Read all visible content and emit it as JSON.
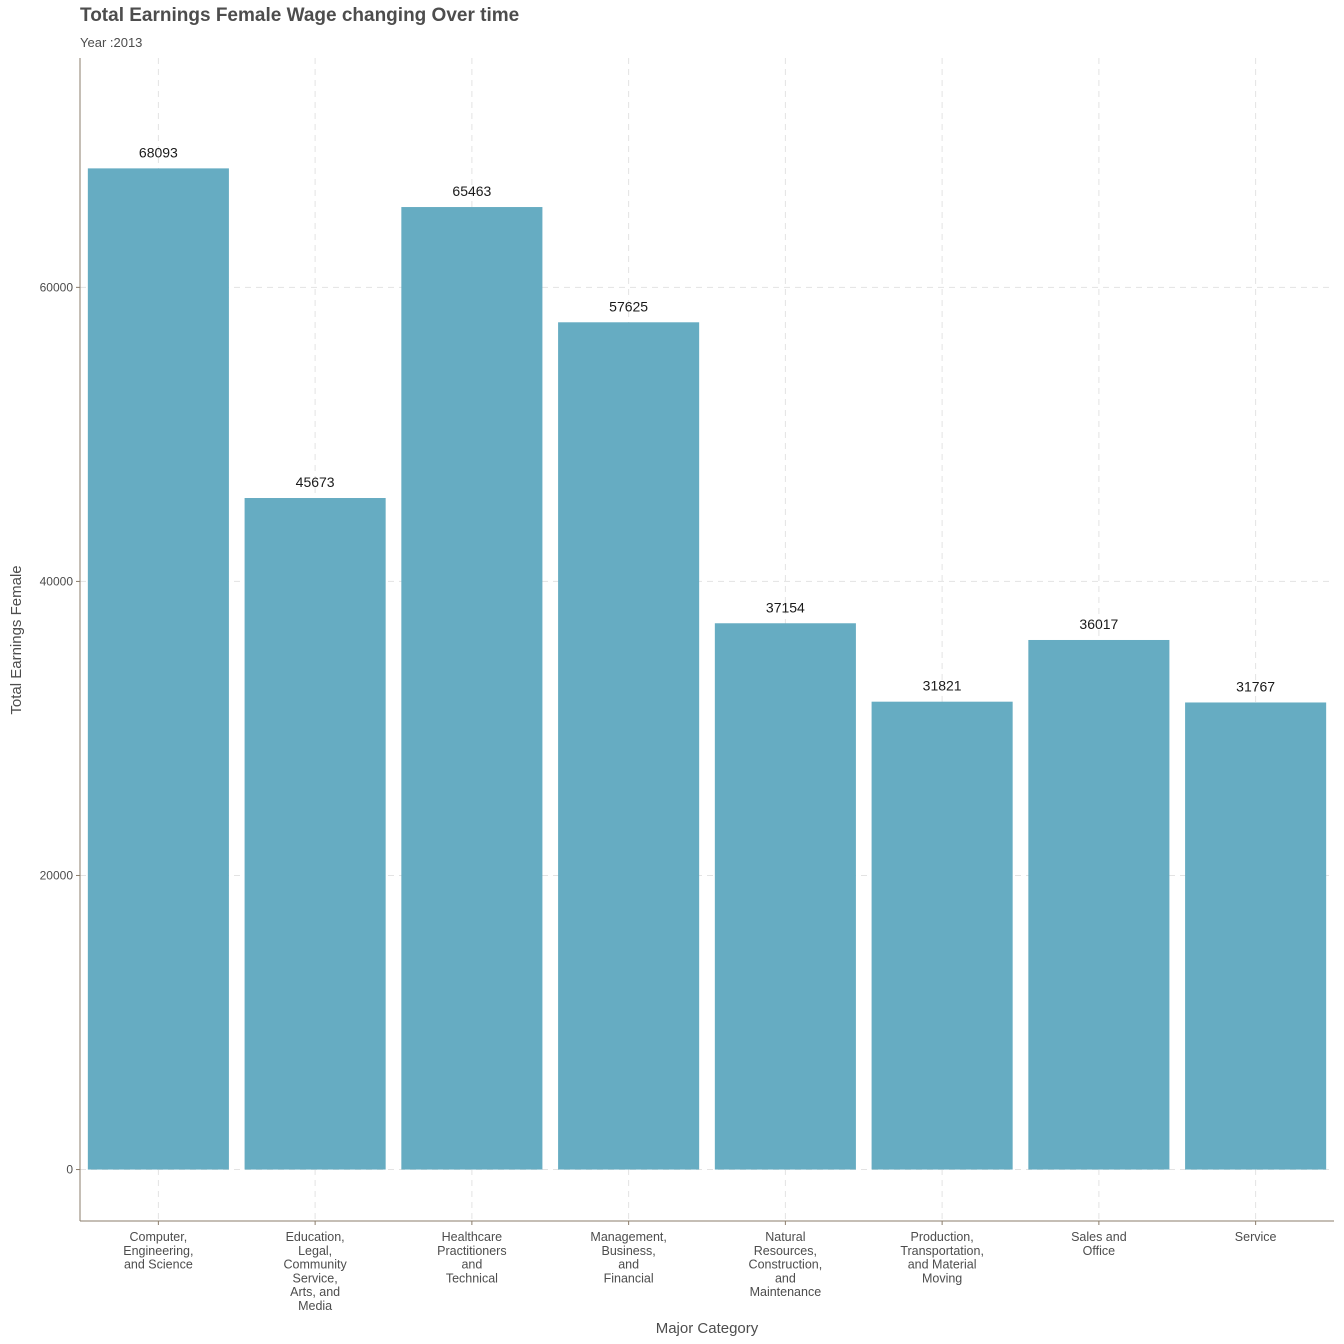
{
  "chart_data": {
    "type": "bar",
    "title": "Total Earnings Female Wage changing Over time",
    "subtitle": "Year :2013",
    "xlabel": "Major Category",
    "ylabel": "Total Earnings Female",
    "categories": [
      [
        "Computer,",
        "Engineering,",
        "and Science"
      ],
      [
        "Education,",
        "Legal,",
        "Community",
        "Service,",
        "Arts, and",
        "Media"
      ],
      [
        "Healthcare",
        "Practitioners",
        "and",
        "Technical"
      ],
      [
        "Management,",
        "Business,",
        "and",
        "Financial"
      ],
      [
        "Natural",
        "Resources,",
        "Construction,",
        "and",
        "Maintenance"
      ],
      [
        "Production,",
        "Transportation,",
        "and Material",
        "Moving"
      ],
      [
        "Sales and",
        "Office"
      ],
      [
        "Service"
      ]
    ],
    "values": [
      68093,
      45673,
      65463,
      57625,
      37154,
      31821,
      36017,
      31767
    ],
    "data_labels": [
      "68093",
      "45673",
      "65463",
      "57625",
      "37154",
      "31821",
      "36017",
      "31767"
    ],
    "yticks": [
      0,
      20000,
      40000,
      60000
    ],
    "ytick_labels": [
      "0",
      "20000",
      "40000",
      "60000"
    ],
    "ylim": [
      -3500,
      75600
    ],
    "grid": true,
    "legend": "none",
    "colors": {
      "bar": "#66acc2",
      "grid": "#e3e3e3",
      "axis": "#8b7d6b",
      "text": "#4d4d4d",
      "label": "#1a1a1a"
    }
  }
}
